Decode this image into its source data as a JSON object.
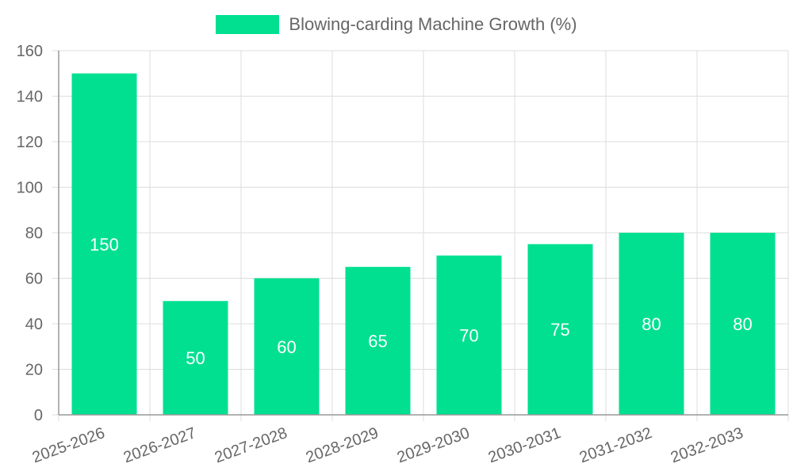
{
  "legend": {
    "label": "Blowing-carding Machine Growth (%)"
  },
  "colors": {
    "bar": "#00e090",
    "grid": "#dddddd",
    "axis": "#999999",
    "text": "#666666",
    "label": "#ffffff"
  },
  "chart_data": {
    "type": "bar",
    "categories": [
      "2025-2026",
      "2026-2027",
      "2027-2028",
      "2028-2029",
      "2029-2030",
      "2030-2031",
      "2031-2032",
      "2032-2033"
    ],
    "series": [
      {
        "name": "Blowing-carding Machine Growth (%)",
        "values": [
          150,
          50,
          60,
          65,
          70,
          75,
          80,
          80
        ]
      }
    ],
    "ylim": [
      0,
      160
    ],
    "yticks": [
      0,
      20,
      40,
      60,
      80,
      100,
      120,
      140,
      160
    ],
    "grid": true,
    "legend_position": "top-center",
    "data_labels": true
  }
}
